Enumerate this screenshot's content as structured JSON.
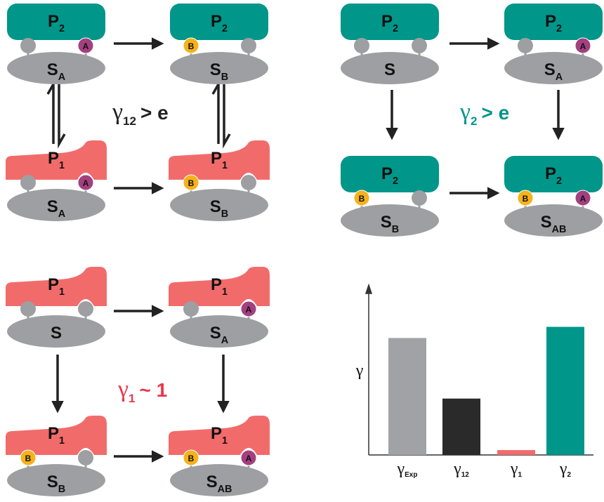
{
  "panels": [
    {
      "label": {
        "symbol": "γ",
        "sub": "12",
        "rel": "> e"
      },
      "molecules": [
        {
          "protein": {
            "main": "P",
            "sub": "2"
          },
          "substrate": {
            "main": "S",
            "sub": "A"
          },
          "right_site": "A"
        },
        {
          "protein": {
            "main": "P",
            "sub": "2"
          },
          "substrate": {
            "main": "S",
            "sub": "B"
          },
          "left_site": "B"
        },
        {
          "protein": {
            "main": "P",
            "sub": "1"
          },
          "substrate": {
            "main": "S",
            "sub": "A"
          },
          "right_site": "A"
        },
        {
          "protein": {
            "main": "P",
            "sub": "1"
          },
          "substrate": {
            "main": "S",
            "sub": "B"
          },
          "left_site": "B"
        }
      ]
    },
    {
      "label": {
        "symbol": "γ",
        "sub": "2",
        "rel": "> e"
      },
      "molecules": [
        {
          "protein": {
            "main": "P",
            "sub": "2"
          },
          "substrate": {
            "main": "S"
          }
        },
        {
          "protein": {
            "main": "P",
            "sub": "2"
          },
          "substrate": {
            "main": "S",
            "sub": "A"
          },
          "right_site": "A"
        },
        {
          "protein": {
            "main": "P",
            "sub": "2"
          },
          "substrate": {
            "main": "S",
            "sub": "B"
          },
          "left_site": "B"
        },
        {
          "protein": {
            "main": "P",
            "sub": "2"
          },
          "substrate": {
            "main": "S",
            "sub": "AB"
          },
          "left_site": "B",
          "right_site": "A"
        }
      ]
    },
    {
      "label": {
        "symbol": "γ",
        "sub": "1",
        "rel": "~ 1"
      },
      "molecules": [
        {
          "protein": {
            "main": "P",
            "sub": "1"
          },
          "substrate": {
            "main": "S"
          }
        },
        {
          "protein": {
            "main": "P",
            "sub": "1"
          },
          "substrate": {
            "main": "S",
            "sub": "A"
          },
          "right_site": "A"
        },
        {
          "protein": {
            "main": "P",
            "sub": "1"
          },
          "substrate": {
            "main": "S",
            "sub": "B"
          },
          "left_site": "B"
        },
        {
          "protein": {
            "main": "P",
            "sub": "1"
          },
          "substrate": {
            "main": "S",
            "sub": "AB"
          },
          "left_site": "B",
          "right_site": "A"
        }
      ]
    }
  ],
  "chart_data": {
    "type": "bar",
    "y_label": "γ",
    "categories": [
      {
        "main": "γ",
        "sub": "Exp"
      },
      {
        "main": "γ",
        "sub": "12"
      },
      {
        "main": "γ",
        "sub": "1"
      },
      {
        "main": "γ",
        "sub": "2"
      }
    ],
    "values": [
      168,
      81,
      7,
      184
    ],
    "colors": [
      "#a1a2a5",
      "#2a2a2a",
      "#f26b6b",
      "#00968a"
    ],
    "ylim": [
      0,
      240
    ]
  }
}
